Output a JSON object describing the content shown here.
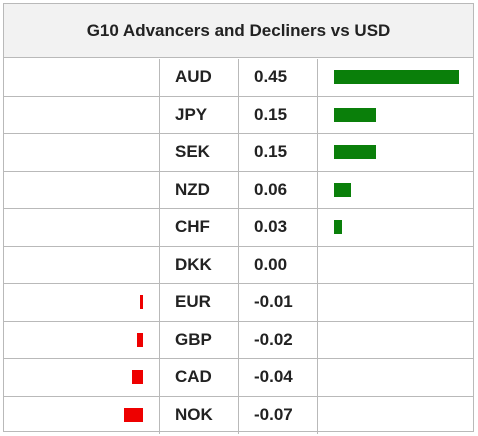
{
  "title": "G10 Advancers and Decliners vs USD",
  "colors": {
    "positive": "#0a7f0a",
    "negative": "#ee0000",
    "header_bg": "#f2f2f2",
    "border": "#b9b9b9"
  },
  "chart_data": {
    "type": "bar",
    "title": "G10 Advancers and Decliners vs USD",
    "categories": [
      "AUD",
      "JPY",
      "SEK",
      "NZD",
      "CHF",
      "DKK",
      "EUR",
      "GBP",
      "CAD",
      "NOK"
    ],
    "values": [
      0.45,
      0.15,
      0.15,
      0.06,
      0.03,
      0.0,
      -0.01,
      -0.02,
      -0.04,
      -0.07
    ],
    "value_labels": [
      "0.45",
      "0.15",
      "0.15",
      "0.06",
      "0.03",
      "0.00",
      "-0.01",
      "-0.02",
      "-0.04",
      "-0.07"
    ],
    "orientation": "horizontal",
    "xlabel": "",
    "ylabel": "",
    "grid": false,
    "legend": "none"
  },
  "rows": [
    {
      "currency": "AUD",
      "value_label": "0.45"
    },
    {
      "currency": "JPY",
      "value_label": "0.15"
    },
    {
      "currency": "SEK",
      "value_label": "0.15"
    },
    {
      "currency": "NZD",
      "value_label": "0.06"
    },
    {
      "currency": "CHF",
      "value_label": "0.03"
    },
    {
      "currency": "DKK",
      "value_label": "0.00"
    },
    {
      "currency": "EUR",
      "value_label": "-0.01"
    },
    {
      "currency": "GBP",
      "value_label": "-0.02"
    },
    {
      "currency": "CAD",
      "value_label": "-0.04"
    },
    {
      "currency": "NOK",
      "value_label": "-0.07"
    }
  ]
}
